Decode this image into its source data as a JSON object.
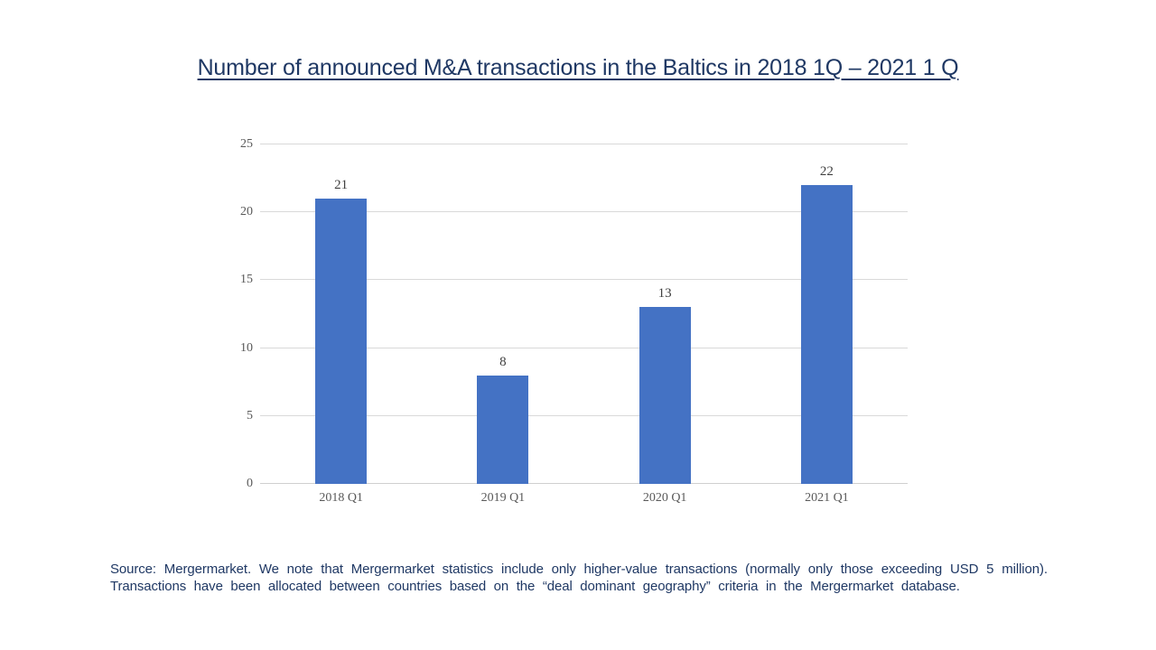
{
  "slide": {
    "title": "Number of announced M&A transactions in the Baltics in 2018 1Q – 2021 1 Q",
    "source_note": {
      "line1": "Source: Mergermarket. We note that Mergermarket statistics include only higher-value transactions (normally only those exceeding USD 5 million).",
      "line2": "Transactions have been allocated between countries based on the “deal dominant geography” criteria in the Mergermarket database."
    }
  },
  "chart_data": {
    "type": "bar",
    "title": "Number of announced M&A transactions in the Baltics in 2018 1Q – 2021 1 Q",
    "categories": [
      "2018 Q1",
      "2019 Q1",
      "2020 Q1",
      "2021 Q1"
    ],
    "values": [
      21,
      8,
      13,
      22
    ],
    "data_labels": [
      "21",
      "8",
      "13",
      "22"
    ],
    "xlabel": "",
    "ylabel": "",
    "ylim": [
      0,
      25
    ],
    "y_ticks": [
      "0",
      "5",
      "10",
      "15",
      "20",
      "25"
    ],
    "grid": true,
    "legend": "none",
    "colors": {
      "bar": "#4472c4",
      "gridline": "#d9d9d9",
      "axis_line": "#cfcfcf",
      "tick_label": "#595959",
      "data_label": "#404040",
      "title": "#1f3864",
      "source_text": "#1f3864",
      "background": "#ffffff"
    }
  }
}
